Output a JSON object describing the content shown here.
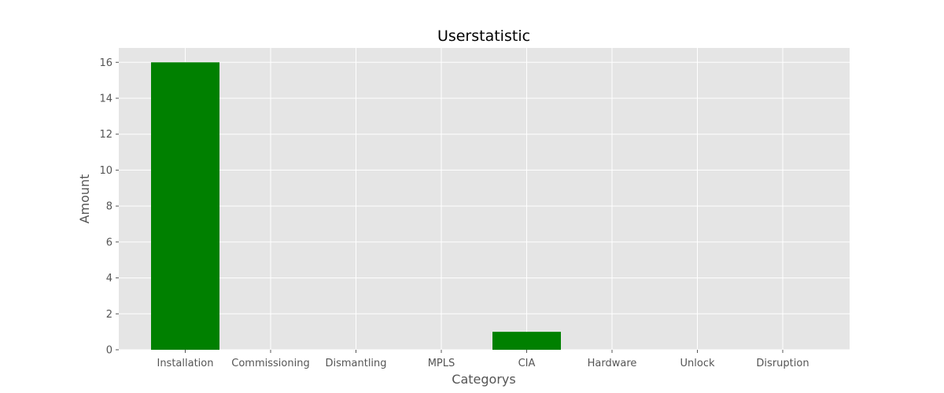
{
  "chart_data": {
    "type": "bar",
    "title": "Userstatistic",
    "xlabel": "Categorys",
    "ylabel": "Amount",
    "categories": [
      "Installation",
      "Commissioning",
      "Dismantling",
      "MPLS",
      "CIA",
      "Hardware",
      "Unlock",
      "Disruption"
    ],
    "values": [
      16,
      0,
      0,
      0,
      1,
      0,
      0,
      0
    ],
    "yticks": [
      0,
      2,
      4,
      6,
      8,
      10,
      12,
      14,
      16
    ],
    "ylim": [
      0,
      16.8
    ],
    "grid": true,
    "legend": "none",
    "colors": {
      "bar": "#008000",
      "plot_background": "#e5e5e5",
      "grid": "#ffffff",
      "tick_text": "#555555",
      "title_text": "#000000"
    }
  }
}
